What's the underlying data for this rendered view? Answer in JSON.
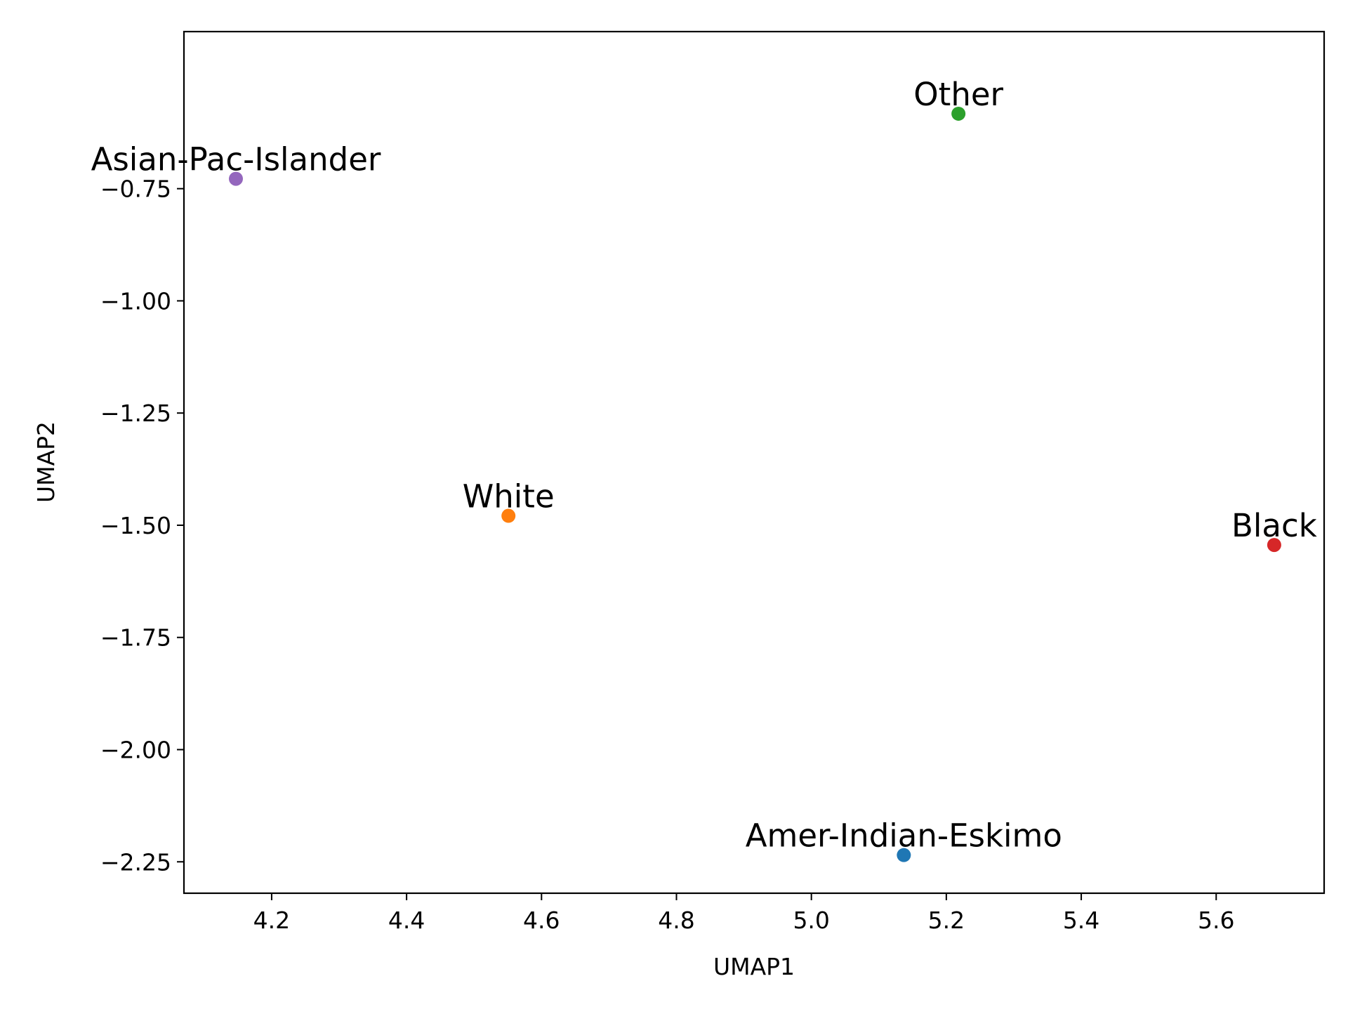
{
  "chart_data": {
    "type": "scatter",
    "title": "",
    "xlabel": "UMAP1",
    "ylabel": "UMAP2",
    "xlim": [
      4.07,
      5.76
    ],
    "ylim": [
      -2.32,
      -0.4
    ],
    "xticks": [
      4.2,
      4.4,
      4.6,
      4.8,
      5.0,
      5.2,
      5.4,
      5.6
    ],
    "xtick_labels": [
      "4.2",
      "4.4",
      "4.6",
      "4.8",
      "5.0",
      "5.2",
      "5.4",
      "5.6"
    ],
    "yticks": [
      -0.75,
      -1.0,
      -1.25,
      -1.5,
      -1.75,
      -2.0,
      -2.25
    ],
    "ytick_labels": [
      "−0.75",
      "−1.00",
      "−1.25",
      "−1.50",
      "−1.75",
      "−2.00",
      "−2.25"
    ],
    "grid": false,
    "legend": "none",
    "points": [
      {
        "label": "Amer-Indian-Eskimo",
        "x": 5.137,
        "y": -2.235,
        "color": "#1f77b4"
      },
      {
        "label": "White",
        "x": 4.551,
        "y": -1.479,
        "color": "#ff7f0e"
      },
      {
        "label": "Other",
        "x": 5.218,
        "y": -0.583,
        "color": "#2ca02c"
      },
      {
        "label": "Black",
        "x": 5.686,
        "y": -1.544,
        "color": "#d62728"
      },
      {
        "label": "Asian-Pac-Islander",
        "x": 4.147,
        "y": -0.728,
        "color": "#9467bd"
      }
    ]
  }
}
